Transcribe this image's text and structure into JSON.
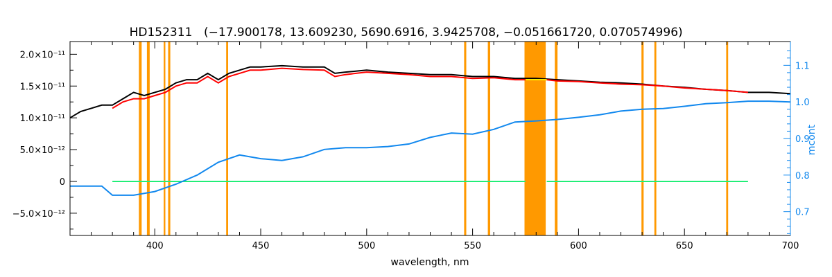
{
  "chart_data": {
    "type": "line",
    "title": "HD152311",
    "subtitle": "(−17.900178, 13.609230, 5690.6916, 3.9425708, −0.051661720, 0.070574996)",
    "xlabel": "wavelength, nm",
    "ylabel_left": "",
    "ylabel_right": "mcont",
    "xlim": [
      360,
      700
    ],
    "ylim_left": [
      -8.5e-12,
      2.2e-11
    ],
    "ylim_right": [
      0.635,
      1.165
    ],
    "x_ticks": [
      "400",
      "450",
      "500",
      "550",
      "600",
      "650",
      "700"
    ],
    "y_ticks_left": [
      "−5.0×10⁻¹²",
      "0",
      "5.0×10⁻¹²",
      "1.0×10⁻¹¹",
      "1.5×10⁻¹¹",
      "2.0×10⁻¹¹"
    ],
    "y_ticks_right": [
      "0.7",
      "0.8",
      "0.9",
      "1.0",
      "1.1"
    ],
    "colors": {
      "observed": "#000000",
      "model": "#ff0000",
      "masked_model": "#ffff00",
      "residuals": "#22ee77",
      "continuum": "#1188ee",
      "mask_bands": "#ff9900",
      "right_axis": "#1188ee"
    },
    "series": [
      {
        "x": [
          360,
          365,
          370,
          375,
          380,
          385,
          390,
          395,
          400,
          405,
          410,
          415,
          420,
          425,
          430,
          435,
          440,
          445,
          450,
          460,
          470,
          480,
          485,
          490,
          500,
          510,
          520,
          530,
          540,
          550,
          560,
          570,
          580,
          590,
          600,
          610,
          620,
          630,
          640,
          650,
          660,
          670,
          680,
          690,
          700
        ],
        "values": [
          1e-11,
          1.1e-11,
          1.15e-11,
          1.2e-11,
          1.2e-11,
          1.3e-11,
          1.4e-11,
          1.35e-11,
          1.4e-11,
          1.45e-11,
          1.55e-11,
          1.6e-11,
          1.6e-11,
          1.7e-11,
          1.6e-11,
          1.7e-11,
          1.75e-11,
          1.8e-11,
          1.8e-11,
          1.82e-11,
          1.8e-11,
          1.8e-11,
          1.7e-11,
          1.72e-11,
          1.75e-11,
          1.72e-11,
          1.7e-11,
          1.68e-11,
          1.68e-11,
          1.65e-11,
          1.65e-11,
          1.62e-11,
          1.62e-11,
          1.6e-11,
          1.58e-11,
          1.56e-11,
          1.55e-11,
          1.53e-11,
          1.5e-11,
          1.48e-11,
          1.45e-11,
          1.43e-11,
          1.4e-11,
          1.4e-11,
          1.38e-11
        ]
      },
      {
        "x": [
          380,
          385,
          390,
          395,
          400,
          405,
          410,
          415,
          420,
          425,
          430,
          435,
          440,
          445,
          450,
          460,
          470,
          480,
          485,
          490,
          500,
          510,
          520,
          530,
          540,
          550,
          560,
          570,
          575,
          585,
          590,
          600,
          610,
          620,
          630,
          640,
          650,
          660,
          670,
          680
        ],
        "values": [
          1.15e-11,
          1.25e-11,
          1.3e-11,
          1.3e-11,
          1.35e-11,
          1.4e-11,
          1.5e-11,
          1.55e-11,
          1.55e-11,
          1.65e-11,
          1.55e-11,
          1.65e-11,
          1.7e-11,
          1.75e-11,
          1.75e-11,
          1.78e-11,
          1.76e-11,
          1.75e-11,
          1.65e-11,
          1.68e-11,
          1.72e-11,
          1.7e-11,
          1.68e-11,
          1.65e-11,
          1.65e-11,
          1.62e-11,
          1.63e-11,
          1.6e-11,
          1.6e-11,
          1.6e-11,
          1.58e-11,
          1.57e-11,
          1.55e-11,
          1.53e-11,
          1.52e-11,
          1.5e-11,
          1.47e-11,
          1.45e-11,
          1.43e-11,
          1.4e-11
        ]
      },
      {
        "x": [
          380,
          390,
          400,
          410,
          420,
          430,
          440,
          450,
          460,
          470,
          480,
          490,
          500,
          510,
          520,
          530,
          540,
          550,
          560,
          570,
          575,
          585,
          590,
          600,
          610,
          620,
          630,
          640,
          650,
          660,
          670,
          680
        ],
        "values": [
          0,
          0,
          0,
          0,
          0,
          0,
          0,
          0,
          0,
          0,
          0,
          0,
          0,
          0,
          0,
          0,
          0,
          0,
          0,
          0,
          0,
          0,
          0,
          0,
          0,
          0,
          0,
          0,
          0,
          0,
          0,
          0
        ]
      },
      {
        "x": [
          360,
          375,
          380,
          390,
          400,
          410,
          420,
          430,
          440,
          450,
          460,
          470,
          480,
          490,
          500,
          510,
          520,
          530,
          540,
          550,
          560,
          570,
          580,
          590,
          600,
          610,
          620,
          630,
          640,
          650,
          660,
          670,
          680,
          690,
          700
        ],
        "values": [
          0.77,
          0.77,
          0.745,
          0.745,
          0.755,
          0.775,
          0.8,
          0.835,
          0.855,
          0.845,
          0.84,
          0.85,
          0.87,
          0.875,
          0.875,
          0.878,
          0.885,
          0.903,
          0.915,
          0.912,
          0.925,
          0.945,
          0.948,
          0.952,
          0.958,
          0.965,
          0.975,
          0.98,
          0.982,
          0.988,
          0.995,
          0.998,
          1.002,
          1.002,
          1.0
        ]
      }
    ],
    "mask_bands": [
      [
        392.5,
        393.8
      ],
      [
        396.3,
        397.6
      ],
      [
        404.2,
        405.0
      ],
      [
        406.3,
        407.3
      ],
      [
        433.7,
        434.6
      ],
      [
        546.0,
        547.0
      ],
      [
        557.2,
        558.3
      ],
      [
        574.5,
        584.5
      ],
      [
        588.8,
        589.6
      ],
      [
        589.4,
        590.1
      ],
      [
        629.7,
        630.7
      ],
      [
        635.8,
        636.7
      ],
      [
        669.7,
        670.6
      ]
    ]
  }
}
